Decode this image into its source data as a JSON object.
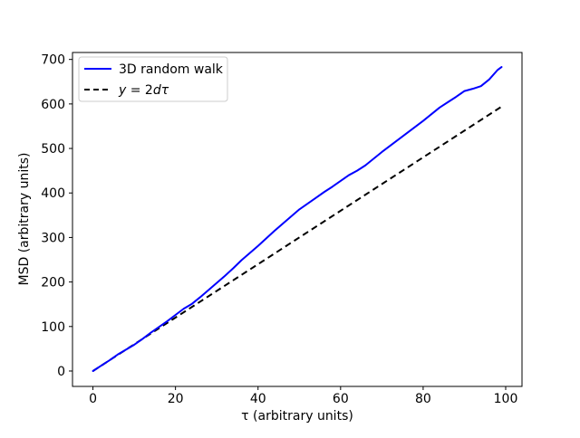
{
  "chart_data": {
    "type": "line",
    "title": "",
    "xlabel": "τ (arbitrary units)",
    "ylabel": "MSD (arbitrary units)",
    "xlim": [
      -4.95,
      103.95
    ],
    "ylim": [
      -34.6,
      715.6
    ],
    "x_ticks": [
      0,
      20,
      40,
      60,
      80,
      100
    ],
    "y_ticks": [
      0,
      100,
      200,
      300,
      400,
      500,
      600,
      700
    ],
    "grid": false,
    "legend_position": "upper left",
    "series": [
      {
        "name": "3D random walk",
        "color": "#0000ff",
        "style": "solid",
        "x": [
          0,
          2,
          4,
          6,
          8,
          10,
          12,
          14,
          16,
          18,
          20,
          22,
          24,
          26,
          28,
          30,
          32,
          34,
          36,
          38,
          40,
          42,
          44,
          46,
          48,
          50,
          52,
          54,
          56,
          58,
          60,
          62,
          64,
          66,
          68,
          70,
          72,
          74,
          76,
          78,
          80,
          82,
          84,
          86,
          88,
          90,
          92,
          94,
          96,
          98,
          99
        ],
        "y": [
          0,
          12,
          24,
          37,
          48,
          59,
          72,
          86,
          99,
          112,
          126,
          140,
          151,
          166,
          182,
          198,
          214,
          231,
          249,
          265,
          281,
          298,
          315,
          331,
          347,
          363,
          376,
          389,
          402,
          414,
          427,
          440,
          450,
          462,
          477,
          492,
          506,
          520,
          534,
          548,
          562,
          577,
          592,
          604,
          616,
          629,
          634,
          640,
          655,
          676,
          683
        ]
      },
      {
        "name": "y = 2dτ",
        "label_parts": {
          "a": "y",
          "b": " = 2",
          "c": "dτ"
        },
        "color": "#000000",
        "style": "dashed",
        "x": [
          0,
          99
        ],
        "y": [
          0,
          594
        ]
      }
    ]
  },
  "colors": {
    "walk_line": "#0000ff",
    "theory_line": "#000000",
    "axis": "#000000",
    "legend_border": "#cccccc",
    "background": "#ffffff"
  }
}
